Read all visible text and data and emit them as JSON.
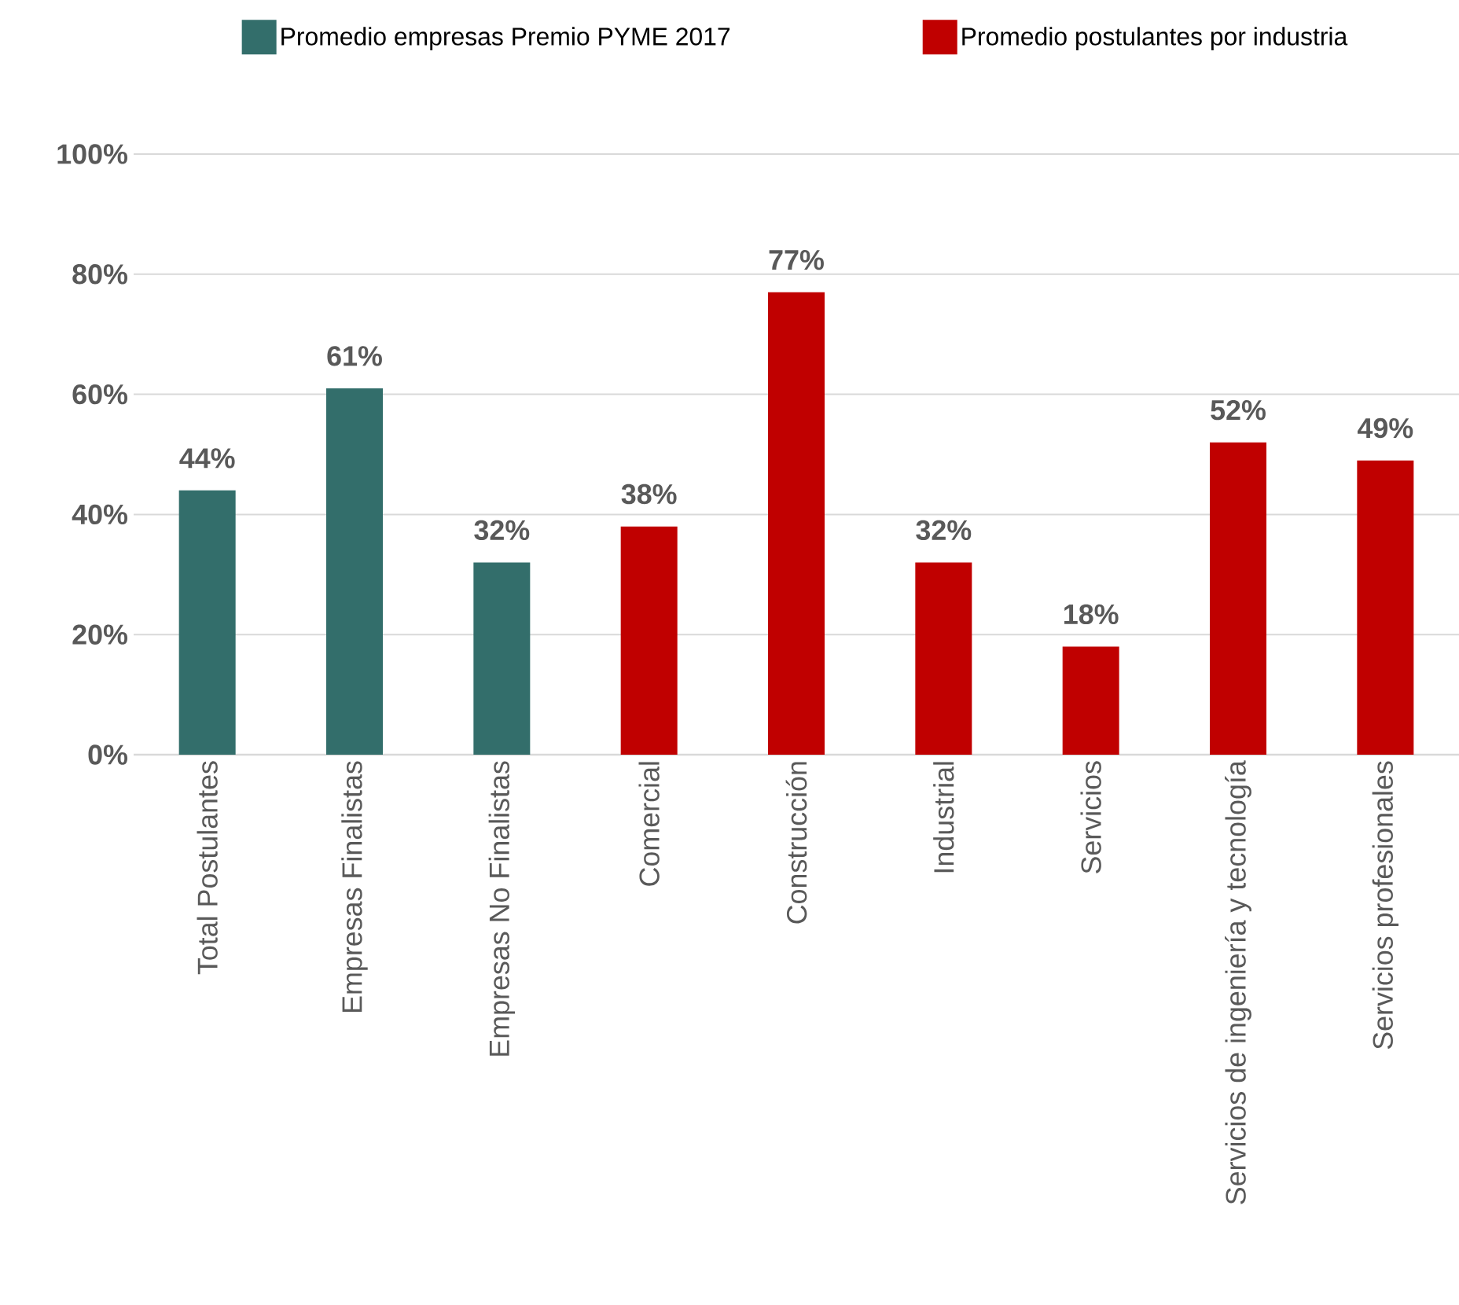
{
  "chart_data": {
    "type": "bar",
    "categories": [
      "Total Postulantes",
      "Empresas Finalistas",
      "Empresas No Finalistas",
      "Comercial",
      "Construcción",
      "Industrial",
      "Servicios",
      "Servicios de ingeniería y tecnología",
      "Servicios profesionales"
    ],
    "series": [
      {
        "name": "Promedio empresas Premio PYME 2017",
        "color": "#336e6b",
        "values": [
          44,
          61,
          32,
          null,
          null,
          null,
          null,
          null,
          null
        ],
        "value_labels": [
          "44%",
          "61%",
          "32%",
          null,
          null,
          null,
          null,
          null,
          null
        ]
      },
      {
        "name": "Promedio postulantes por industria",
        "color": "#c00000",
        "values": [
          null,
          null,
          null,
          38,
          77,
          32,
          18,
          52,
          49
        ],
        "value_labels": [
          null,
          null,
          null,
          "38%",
          "77%",
          "32%",
          "18%",
          "52%",
          "49%"
        ]
      }
    ],
    "ylim": [
      0,
      100
    ],
    "yticks": [
      {
        "value": 0,
        "label": "0%"
      },
      {
        "value": 20,
        "label": "20%"
      },
      {
        "value": 40,
        "label": "40%"
      },
      {
        "value": 60,
        "label": "60%"
      },
      {
        "value": 80,
        "label": "80%"
      },
      {
        "value": 100,
        "label": "100%"
      }
    ],
    "grid": "y",
    "legend": "top"
  }
}
